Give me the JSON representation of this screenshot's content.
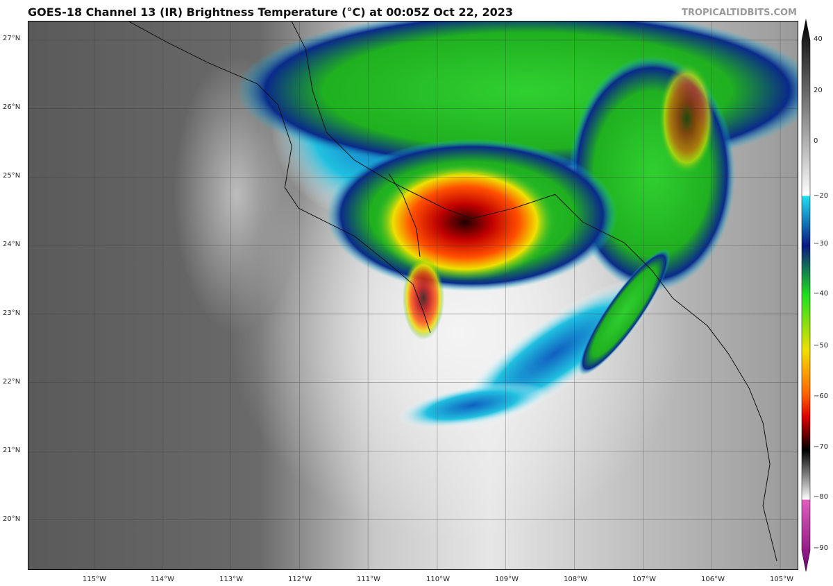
{
  "header": {
    "title": "GOES-18 Channel 13 (IR) Brightness Temperature (°C) at 00:05Z Oct 22, 2023",
    "credit": "TROPICALTIDBITS.COM"
  },
  "map": {
    "longitude_labels": [
      "115°W",
      "114°W",
      "113°W",
      "112°W",
      "111°W",
      "110°W",
      "109°W",
      "108°W",
      "107°W",
      "106°W",
      "105°W"
    ],
    "latitude_labels": [
      "27°N",
      "26°N",
      "25°N",
      "24°N",
      "23°N",
      "22°N",
      "21°N",
      "20°N"
    ]
  },
  "colorbar": {
    "unit": "°C",
    "tick_labels": [
      "40",
      "20",
      "0",
      "−20",
      "−30",
      "−40",
      "−50",
      "−60",
      "−70",
      "−80",
      "−90"
    ],
    "colors": {
      "warm": "#111111",
      "cold_cyan": "#22d8e8",
      "blue": "#0a2a8a",
      "green": "#22c822",
      "yellow": "#f0e000",
      "orange": "#ff7a00",
      "red": "#e00000",
      "dark_red": "#300000",
      "magenta": "#e060c0",
      "purple": "#800080"
    }
  }
}
